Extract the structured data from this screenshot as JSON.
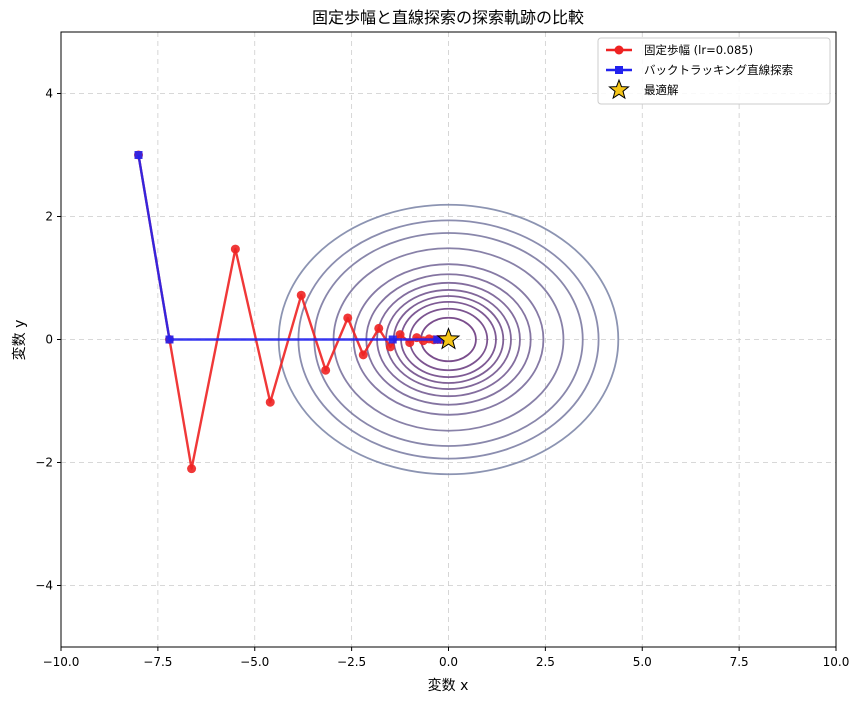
{
  "chart_data": {
    "type": "line",
    "title": "固定歩幅と直線探索の探索軌跡の比較",
    "xlabel": "変数 x",
    "ylabel": "変数 y",
    "xlim": [
      -10,
      10
    ],
    "ylim": [
      -5,
      5
    ],
    "xticks": [
      -10,
      -7.5,
      -5,
      -2.5,
      0,
      2.5,
      5,
      7.5,
      10
    ],
    "xtick_labels": [
      "−10.0",
      "−7.5",
      "−5.0",
      "−2.5",
      "0.0",
      "2.5",
      "5.0",
      "7.5",
      "10.0"
    ],
    "yticks": [
      -4,
      -2,
      0,
      2,
      4
    ],
    "ytick_labels": [
      "−4",
      "−2",
      "0",
      "2",
      "4"
    ],
    "grid": true,
    "legend_position": "top-right",
    "contour_levels": [
      0.25,
      0.5,
      0.75,
      1,
      1.3,
      1.7,
      2.25,
      3,
      4.4,
      6,
      7.5,
      9.6
    ],
    "series": [
      {
        "name": "固定歩幅 (lr=0.085)",
        "color": "#ee2222",
        "marker": "circle",
        "points": [
          [
            -8,
            3
          ],
          [
            -7.2,
            0
          ],
          [
            -6.63,
            -2.1
          ],
          [
            -5.5,
            1.47
          ],
          [
            -4.6,
            -1.02
          ],
          [
            -3.8,
            0.72
          ],
          [
            -3.17,
            -0.5
          ],
          [
            -2.6,
            0.35
          ],
          [
            -2.2,
            -0.25
          ],
          [
            -1.8,
            0.18
          ],
          [
            -1.5,
            -0.12
          ],
          [
            -1.25,
            0.08
          ],
          [
            -1.0,
            -0.05
          ],
          [
            -0.82,
            0.03
          ],
          [
            -0.65,
            -0.02
          ],
          [
            -0.5,
            0.01
          ],
          [
            -0.38,
            -0.005
          ],
          [
            -0.28,
            0
          ],
          [
            -0.2,
            0
          ],
          [
            -0.12,
            0
          ],
          [
            -0.06,
            0
          ]
        ]
      },
      {
        "name": "バックトラッキング直線探索",
        "color": "#2222ee",
        "marker": "square",
        "points": [
          [
            -8,
            3
          ],
          [
            -7.2,
            0
          ],
          [
            -1.44,
            0
          ],
          [
            -0.29,
            0
          ],
          [
            -0.06,
            0
          ],
          [
            0,
            0
          ]
        ]
      },
      {
        "name": "最適解",
        "color": "#f5c518",
        "marker": "star",
        "points": [
          [
            0,
            0
          ]
        ]
      }
    ]
  }
}
